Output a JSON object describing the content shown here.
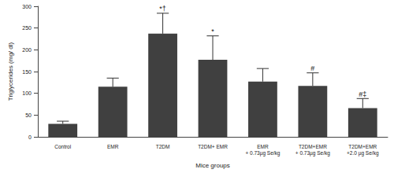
{
  "chart_data": {
    "type": "bar",
    "x_label": "Mice groups",
    "y_label": "Triglycerides (mg/ dl)",
    "categories": [
      "Control",
      "EMR",
      "T2DM",
      "T2DM+ EMR",
      "EMR\n+ 0.73µg Se/kg",
      "T2DM+EMR\n+ 0.73µg Se/kg",
      "T2DM+EMR\n+2.0 µg Se/kg"
    ],
    "values": [
      30,
      115,
      237,
      177,
      127,
      117,
      66
    ],
    "errors": [
      6,
      20,
      47,
      55,
      30,
      30,
      22
    ],
    "annotations": [
      null,
      null,
      "*†",
      "*",
      null,
      "#",
      "#‡"
    ],
    "color": "#404040",
    "ylim": [
      0,
      300
    ],
    "yticks": [
      0,
      50,
      100,
      150,
      200,
      250,
      300
    ],
    "grid": false
  }
}
